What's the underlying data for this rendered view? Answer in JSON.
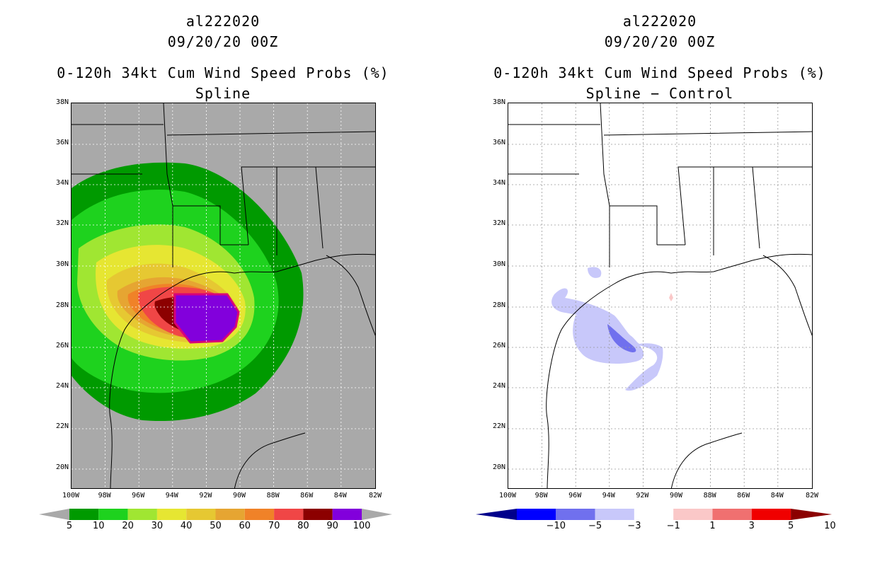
{
  "left": {
    "storm_id": "al222020",
    "date": "09/20/20 00Z",
    "product": "0-120h 34kt Cum Wind Speed Probs (%)",
    "subtitle": "Spline"
  },
  "right": {
    "storm_id": "al222020",
    "date": "09/20/20 00Z",
    "product": "0-120h 34kt Cum Wind Speed Probs (%)",
    "subtitle": "Spline − Control"
  },
  "lat_labels": [
    "38N",
    "36N",
    "34N",
    "32N",
    "30N",
    "28N",
    "26N",
    "24N",
    "22N",
    "20N"
  ],
  "lon_labels": [
    "100W",
    "98W",
    "96W",
    "94W",
    "92W",
    "90W",
    "88W",
    "86W",
    "84W",
    "82W"
  ],
  "left_colorbar": {
    "labels": [
      "5",
      "10",
      "20",
      "30",
      "40",
      "50",
      "60",
      "70",
      "80",
      "90",
      "100"
    ],
    "colors": [
      "#009a00",
      "#1ed21e",
      "#a0e632",
      "#e6e632",
      "#e6c832",
      "#e6a532",
      "#f08228",
      "#f04646",
      "#8c0000",
      "#8200dc"
    ],
    "under": "#a9a9a9",
    "over": "#a9a9a9"
  },
  "right_colorbar": {
    "labels": [
      "−10",
      "−5",
      "−3",
      "−1",
      "1",
      "3",
      "5",
      "10"
    ],
    "colors": [
      "#0000ff",
      "#7070ee",
      "#c8c8fa",
      "#ffffff",
      "#fac8c8",
      "#f07070",
      "#f00000"
    ],
    "under": "#00008b",
    "over": "#8b0000"
  },
  "colors": {
    "land_gray": "#a9a9a9"
  },
  "chart_data": [
    {
      "type": "map",
      "title": "0-120h 34kt Cum Wind Speed Probs (%) - Spline",
      "domain": {
        "lon": [
          -100,
          -82
        ],
        "lat": [
          19,
          38
        ]
      },
      "storm_center_approx": {
        "lon": -92.5,
        "lat": 27.3
      },
      "max_probability_pct": 100
    },
    {
      "type": "map",
      "title": "0-120h 34kt Cum Wind Speed Probs (%) - Spline - Control",
      "domain": {
        "lon": [
          -100,
          -82
        ],
        "lat": [
          19,
          38
        ]
      },
      "min_difference_pct": -5,
      "max_difference_pct": 3
    }
  ]
}
